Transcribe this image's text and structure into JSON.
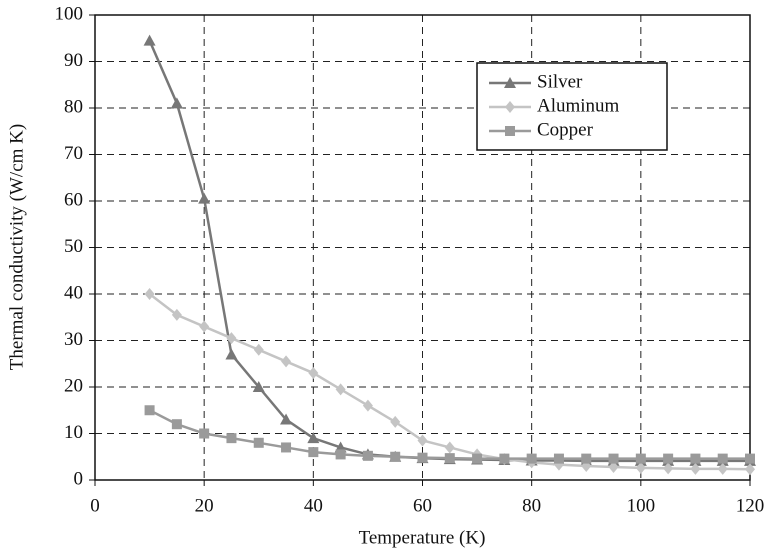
{
  "chart_data": {
    "type": "line",
    "x_label": "Temperature (K)",
    "y_label": "Thermal conductivity (W/cm K)",
    "x": [
      10,
      15,
      20,
      25,
      30,
      35,
      40,
      45,
      50,
      55,
      60,
      65,
      70,
      75,
      80,
      85,
      90,
      95,
      100,
      105,
      110,
      115,
      120
    ],
    "series": [
      {
        "name": "Silver",
        "color": "#777777",
        "marker": "triangle",
        "values": [
          94.5,
          81,
          60.5,
          27,
          20,
          13,
          9,
          7,
          5.5,
          5,
          4.7,
          4.5,
          4.4,
          4.3,
          4.2,
          4.2,
          4.1,
          4.1,
          4.1,
          4.1,
          4.1,
          4.1,
          4.1
        ]
      },
      {
        "name": "Aluminum",
        "color": "#c4c4c4",
        "marker": "diamond",
        "values": [
          40,
          35.5,
          33,
          30.5,
          28,
          25.5,
          23,
          19.5,
          16,
          12.5,
          8.5,
          7,
          5.5,
          4.5,
          3.8,
          3.3,
          3,
          2.8,
          2.6,
          2.5,
          2.4,
          2.4,
          2.3
        ]
      },
      {
        "name": "Copper",
        "color": "#9a9a9a",
        "marker": "square",
        "values": [
          15,
          12,
          10,
          9,
          8,
          7,
          6,
          5.5,
          5.2,
          5,
          4.8,
          4.7,
          4.6,
          4.6,
          4.6,
          4.6,
          4.6,
          4.6,
          4.6,
          4.6,
          4.6,
          4.6,
          4.6
        ]
      }
    ],
    "xlim": [
      0,
      120
    ],
    "xticks": [
      0,
      20,
      40,
      60,
      80,
      100,
      120
    ],
    "ylim": [
      0,
      100
    ],
    "yticks": [
      0,
      10,
      20,
      30,
      40,
      50,
      60,
      70,
      80,
      90,
      100
    ],
    "grid": true,
    "legend": "upper right"
  }
}
